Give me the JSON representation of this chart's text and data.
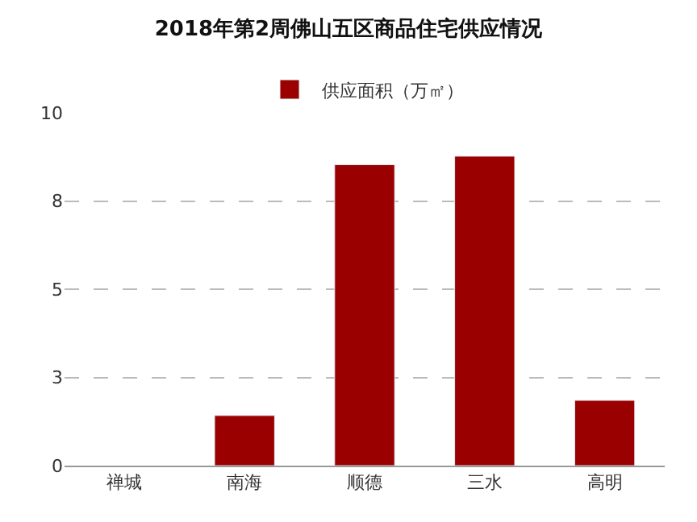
{
  "chart_data": {
    "type": "bar",
    "title": "2018年第2周佛山五区商品住宅供应情况",
    "categories": [
      "禅城",
      "南海",
      "顺德",
      "三水",
      "高明"
    ],
    "series": [
      {
        "name": "供应面积（万㎡）",
        "color": "#9b0000",
        "values": [
          null,
          1.42,
          8.53,
          8.77,
          1.85
        ]
      }
    ],
    "ylim": [
      0,
      10
    ],
    "yticks": [
      0,
      {
        "value": 2.5,
        "label": "3"
      },
      5,
      {
        "value": 7.5,
        "label": "8"
      },
      10
    ],
    "grid": "y",
    "legend": "top"
  }
}
